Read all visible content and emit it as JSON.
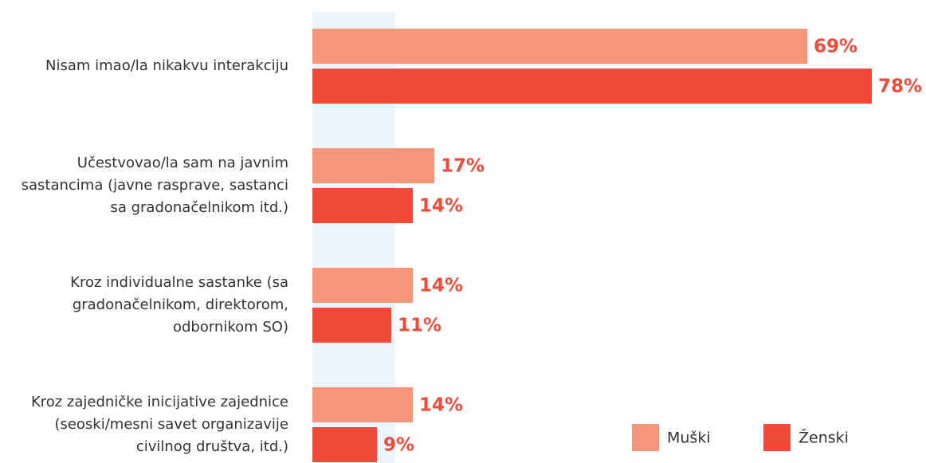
{
  "chart_data": {
    "type": "bar",
    "orientation": "horizontal",
    "categories": [
      "Nisam imao/la nikakvu interakciju",
      "Učestvovao/la sam na javnim sastancima (javne rasprave, sastanci sa gradonačelnikom itd.)",
      "Kroz individualne sastanke (sa gradonačelnikom, direktorom, odbornikom SO)",
      "Kroz zajedničke inicijative zajednice (seoski/mesni savet organizavije civilnog društva, itd.)"
    ],
    "series": [
      {
        "name": "Muški",
        "color": "#f4967a",
        "values": [
          69,
          17,
          14,
          14
        ],
        "value_labels": [
          "69%",
          "17%",
          "14%",
          "14%"
        ]
      },
      {
        "name": "Ženski",
        "color": "#ef4b3a",
        "values": [
          78,
          14,
          11,
          9
        ],
        "value_labels": [
          "78%",
          "14%",
          "11%",
          "9%"
        ]
      }
    ],
    "value_label_color": "#ef4b3a",
    "legend": "bottom-right"
  }
}
